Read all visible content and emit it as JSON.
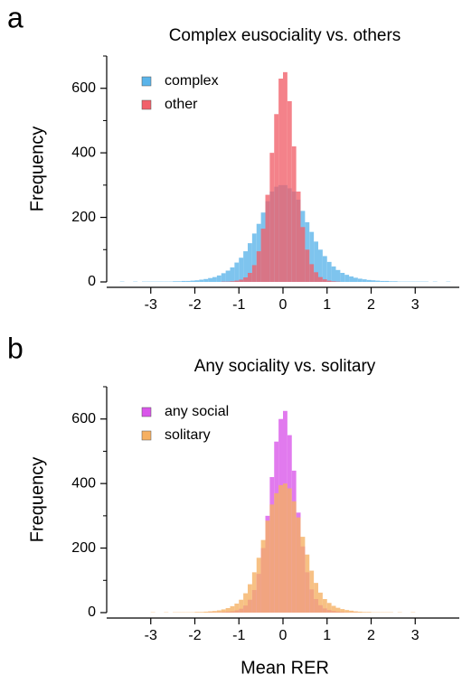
{
  "chart_data": [
    {
      "type": "histogram",
      "panel_label": "a",
      "title": "Complex eusociality vs. others",
      "ylabel": "Frequency",
      "bins": [
        -4,
        -3.9,
        -3.8,
        -3.7,
        -3.6,
        -3.5,
        -3.4,
        -3.3,
        -3.2,
        -3.1,
        -3,
        -2.9,
        -2.8,
        -2.7,
        -2.6,
        -2.5,
        -2.4,
        -2.3,
        -2.2,
        -2.1,
        -2,
        -1.9,
        -1.8,
        -1.7,
        -1.6,
        -1.5,
        -1.4,
        -1.3,
        -1.2,
        -1.1,
        -1,
        -0.9,
        -0.8,
        -0.7,
        -0.6,
        -0.5,
        -0.4,
        -0.3,
        -0.2,
        -0.1,
        0,
        0.1,
        0.2,
        0.3,
        0.4,
        0.5,
        0.6,
        0.7,
        0.8,
        0.9,
        1,
        1.1,
        1.2,
        1.3,
        1.4,
        1.5,
        1.6,
        1.7,
        1.8,
        1.9,
        2,
        2.1,
        2.2,
        2.3,
        2.4,
        2.5,
        2.6,
        2.7,
        2.8,
        2.9,
        3,
        3.1,
        3.2,
        3.3,
        3.4,
        3.5,
        3.6,
        3.7,
        3.8,
        3.9,
        4
      ],
      "series": [
        {
          "name": "complex",
          "color": "#5ab4ea",
          "values": [
            0,
            0,
            0,
            1,
            0,
            0,
            1,
            0,
            1,
            1,
            1,
            1,
            1,
            1,
            1,
            2,
            2,
            3,
            3,
            4,
            5,
            7,
            9,
            12,
            15,
            20,
            27,
            35,
            45,
            60,
            75,
            95,
            120,
            150,
            180,
            215,
            250,
            280,
            295,
            300,
            300,
            290,
            280,
            255,
            220,
            185,
            155,
            125,
            100,
            80,
            62,
            48,
            37,
            28,
            22,
            17,
            13,
            10,
            8,
            6,
            5,
            4,
            3,
            3,
            2,
            2,
            1,
            1,
            1,
            1,
            1,
            1,
            1,
            0,
            1,
            0,
            0,
            1,
            0,
            0
          ]
        },
        {
          "name": "other",
          "color": "#f2606a",
          "values": [
            0,
            0,
            0,
            0,
            0,
            0,
            0,
            0,
            0,
            0,
            0,
            0,
            0,
            0,
            0,
            0,
            0,
            0,
            0,
            0,
            0,
            0,
            0,
            0,
            0,
            0,
            1,
            1,
            2,
            4,
            7,
            14,
            28,
            52,
            95,
            165,
            270,
            400,
            520,
            630,
            650,
            560,
            420,
            280,
            170,
            100,
            55,
            30,
            15,
            8,
            4,
            2,
            1,
            0,
            0,
            0,
            0,
            0,
            0,
            0,
            0,
            0,
            0,
            0,
            0,
            0,
            0,
            0,
            0,
            0,
            0,
            0,
            0,
            0,
            0,
            0,
            0,
            0,
            0,
            0
          ]
        }
      ],
      "xlim": [
        -4,
        4
      ],
      "xticks": [
        -3,
        -2,
        -1,
        0,
        1,
        2,
        3
      ],
      "ylim": [
        0,
        700
      ],
      "yticks": [
        0,
        200,
        400,
        600
      ],
      "y_minor_ticks": [
        100,
        300,
        500,
        700
      ]
    },
    {
      "type": "histogram",
      "panel_label": "b",
      "title": "Any sociality vs. solitary",
      "ylabel": "Frequency",
      "xlabel": "Mean RER",
      "bins": [
        -4,
        -3.9,
        -3.8,
        -3.7,
        -3.6,
        -3.5,
        -3.4,
        -3.3,
        -3.2,
        -3.1,
        -3,
        -2.9,
        -2.8,
        -2.7,
        -2.6,
        -2.5,
        -2.4,
        -2.3,
        -2.2,
        -2.1,
        -2,
        -1.9,
        -1.8,
        -1.7,
        -1.6,
        -1.5,
        -1.4,
        -1.3,
        -1.2,
        -1.1,
        -1,
        -0.9,
        -0.8,
        -0.7,
        -0.6,
        -0.5,
        -0.4,
        -0.3,
        -0.2,
        -0.1,
        0,
        0.1,
        0.2,
        0.3,
        0.4,
        0.5,
        0.6,
        0.7,
        0.8,
        0.9,
        1,
        1.1,
        1.2,
        1.3,
        1.4,
        1.5,
        1.6,
        1.7,
        1.8,
        1.9,
        2,
        2.1,
        2.2,
        2.3,
        2.4,
        2.5,
        2.6,
        2.7,
        2.8,
        2.9,
        3,
        3.1,
        3.2,
        3.3,
        3.4,
        3.5,
        3.6,
        3.7,
        3.8,
        3.9,
        4
      ],
      "series": [
        {
          "name": "any social",
          "color": "#d955ea",
          "values": [
            0,
            0,
            0,
            0,
            0,
            0,
            0,
            0,
            0,
            0,
            0,
            0,
            0,
            0,
            0,
            0,
            0,
            0,
            0,
            0,
            0,
            0,
            0,
            1,
            1,
            1,
            2,
            3,
            4,
            7,
            12,
            22,
            40,
            70,
            120,
            200,
            300,
            420,
            530,
            600,
            625,
            550,
            440,
            310,
            205,
            125,
            72,
            42,
            23,
            13,
            8,
            5,
            3,
            2,
            1,
            1,
            1,
            0,
            0,
            0,
            0,
            0,
            0,
            0,
            0,
            0,
            0,
            0,
            0,
            0,
            0,
            0,
            0,
            0,
            0,
            0,
            0,
            0,
            0,
            0
          ]
        },
        {
          "name": "solitary",
          "color": "#f6b062",
          "values": [
            0,
            0,
            0,
            0,
            0,
            0,
            0,
            0,
            0,
            0,
            1,
            0,
            0,
            1,
            0,
            1,
            1,
            1,
            1,
            1,
            2,
            2,
            3,
            4,
            5,
            7,
            10,
            14,
            20,
            28,
            40,
            60,
            88,
            125,
            170,
            225,
            285,
            335,
            370,
            395,
            400,
            385,
            345,
            295,
            235,
            180,
            130,
            92,
            62,
            42,
            30,
            21,
            15,
            11,
            8,
            6,
            4,
            3,
            2,
            2,
            1,
            1,
            1,
            1,
            1,
            0,
            1,
            0,
            0,
            1,
            0,
            0,
            0,
            0,
            0,
            0,
            0,
            0,
            0,
            0
          ]
        }
      ],
      "xlim": [
        -4,
        4
      ],
      "xticks": [
        -3,
        -2,
        -1,
        0,
        1,
        2,
        3
      ],
      "ylim": [
        0,
        700
      ],
      "yticks": [
        0,
        200,
        400,
        600
      ],
      "y_minor_ticks": [
        100,
        300,
        500,
        700
      ]
    }
  ]
}
